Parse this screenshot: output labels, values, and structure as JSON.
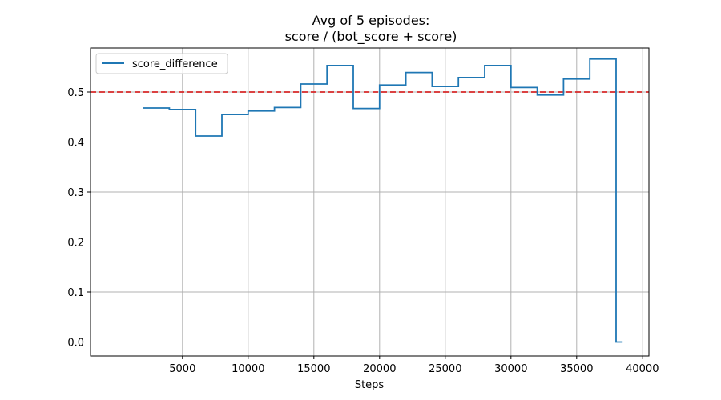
{
  "chart_data": {
    "type": "line",
    "title": "Avg of 5 episodes:",
    "subtitle": "score / (bot_score + score)",
    "xlabel": "Steps",
    "ylabel": "",
    "xlim": [
      -2000,
      40500
    ],
    "ylim": [
      -0.028,
      0.588
    ],
    "xticks": [
      5000,
      10000,
      15000,
      20000,
      25000,
      30000,
      35000,
      40000
    ],
    "yticks": [
      0.0,
      0.1,
      0.2,
      0.3,
      0.4,
      0.5
    ],
    "grid": true,
    "legend": {
      "placement": "top-left",
      "entries": [
        "score_difference"
      ]
    },
    "series": [
      {
        "name": "score_difference",
        "color": "#1f77b4",
        "drawstyle": "steps-post",
        "x": [
          2000,
          4000,
          6000,
          8000,
          10000,
          12000,
          14000,
          16000,
          18000,
          20000,
          22000,
          24000,
          26000,
          28000,
          30000,
          32000,
          34000,
          36000,
          38000,
          38500
        ],
        "y": [
          0.468,
          0.465,
          0.412,
          0.455,
          0.462,
          0.469,
          0.516,
          0.553,
          0.467,
          0.514,
          0.539,
          0.511,
          0.529,
          0.553,
          0.509,
          0.494,
          0.526,
          0.566,
          0.0,
          0.0
        ]
      }
    ],
    "reference_lines": [
      {
        "orientation": "horizontal",
        "y": 0.5,
        "color": "#d62728",
        "style": "dashed"
      }
    ]
  }
}
